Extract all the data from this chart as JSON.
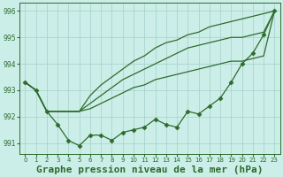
{
  "title": "Graphe pression niveau de la mer (hPa)",
  "background_color": "#cceee8",
  "grid_color": "#aad4ce",
  "line_color": "#2d6b2d",
  "xlim": [
    -0.5,
    23.5
  ],
  "ylim": [
    990.6,
    996.3
  ],
  "yticks": [
    991,
    992,
    993,
    994,
    995,
    996
  ],
  "xtick_labels": [
    "0",
    "1",
    "2",
    "3",
    "4",
    "5",
    "6",
    "7",
    "8",
    "9",
    "10",
    "11",
    "12",
    "13",
    "14",
    "15",
    "16",
    "17",
    "18",
    "19",
    "20",
    "21",
    "22",
    "23"
  ],
  "series_jagged": [
    993.3,
    993.0,
    992.2,
    991.7,
    991.1,
    990.9,
    991.3,
    991.3,
    991.1,
    991.4,
    991.5,
    991.6,
    991.9,
    991.7,
    991.6,
    992.2,
    992.1,
    992.4,
    992.7,
    993.3,
    994.0,
    994.4,
    995.1,
    996.0
  ],
  "series_linear1": [
    993.3,
    993.0,
    992.2,
    992.2,
    992.2,
    992.2,
    992.3,
    992.5,
    992.7,
    992.9,
    993.1,
    993.2,
    993.4,
    993.5,
    993.6,
    993.7,
    993.8,
    993.9,
    994.0,
    994.1,
    994.1,
    994.2,
    994.3,
    996.0
  ],
  "series_linear2": [
    993.3,
    993.0,
    992.2,
    992.2,
    992.2,
    992.2,
    992.8,
    993.2,
    993.5,
    993.8,
    994.1,
    994.3,
    994.6,
    994.8,
    994.9,
    995.1,
    995.2,
    995.4,
    995.5,
    995.6,
    995.7,
    995.8,
    995.9,
    996.0
  ],
  "series_linear3": [
    993.3,
    993.0,
    992.2,
    992.2,
    992.2,
    992.2,
    992.5,
    992.8,
    993.1,
    993.4,
    993.6,
    993.8,
    994.0,
    994.2,
    994.4,
    994.6,
    994.7,
    994.8,
    994.9,
    995.0,
    995.0,
    995.1,
    995.2,
    996.0
  ],
  "title_fontsize": 8.0,
  "title_color": "#2d6b2d",
  "tick_color": "#2d6b2d",
  "marker": "D",
  "marker_size": 2.5,
  "linewidth": 0.9
}
